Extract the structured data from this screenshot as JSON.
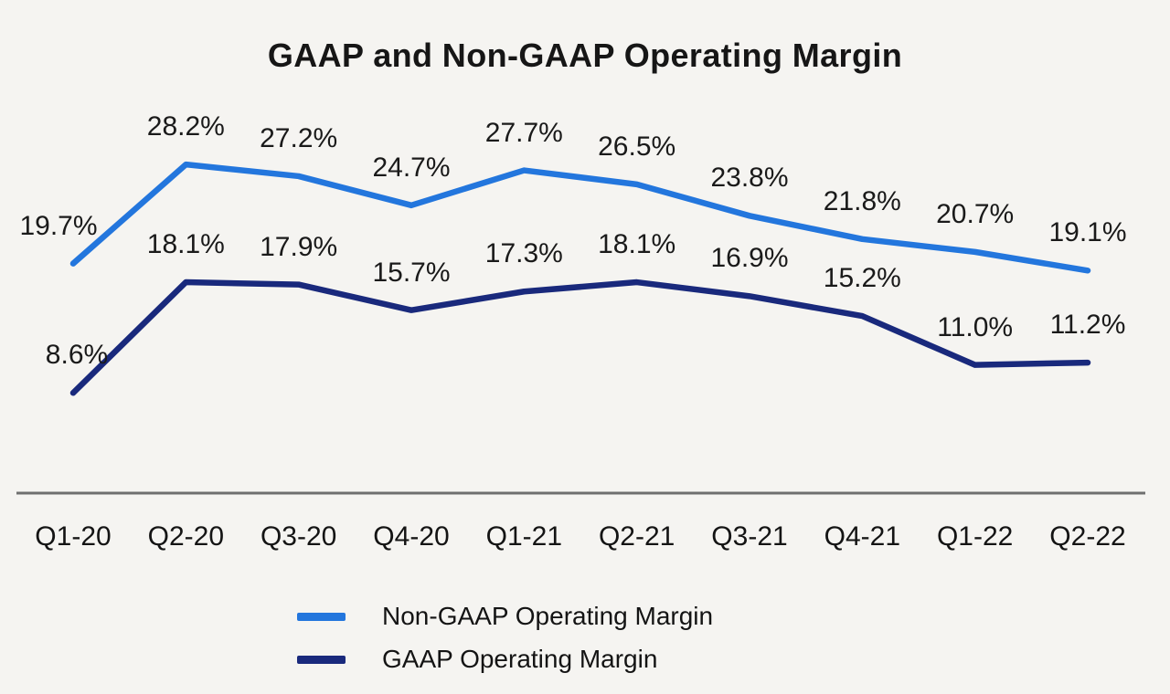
{
  "chart_data": {
    "type": "line",
    "title": "GAAP and Non-GAAP Operating Margin",
    "categories": [
      "Q1-20",
      "Q2-20",
      "Q3-20",
      "Q4-20",
      "Q1-21",
      "Q2-21",
      "Q3-21",
      "Q4-21",
      "Q1-22",
      "Q2-22"
    ],
    "series": [
      {
        "name": "Non-GAAP Operating Margin",
        "color": "#2376dd",
        "values": [
          19.7,
          28.2,
          27.2,
          24.7,
          27.7,
          26.5,
          23.8,
          21.8,
          20.7,
          19.1
        ],
        "labels": [
          "19.7%",
          "28.2%",
          "27.2%",
          "24.7%",
          "27.7%",
          "26.5%",
          "23.8%",
          "21.8%",
          "20.7%",
          "19.1%"
        ]
      },
      {
        "name": "GAAP Operating Margin",
        "color": "#19297c",
        "values": [
          8.6,
          18.1,
          17.9,
          15.7,
          17.3,
          18.1,
          16.9,
          15.2,
          11.0,
          11.2
        ],
        "labels": [
          "8.6%",
          "18.1%",
          "17.9%",
          "15.7%",
          "17.3%",
          "18.1%",
          "16.9%",
          "15.2%",
          "11.0%",
          "11.2%"
        ]
      }
    ],
    "xlabel": "",
    "ylabel": "",
    "ylim": [
      0,
      31
    ],
    "grid": false,
    "legend_position": "bottom",
    "axis_line_color": "#6f6f6f",
    "background_color": "#f5f4f1"
  }
}
